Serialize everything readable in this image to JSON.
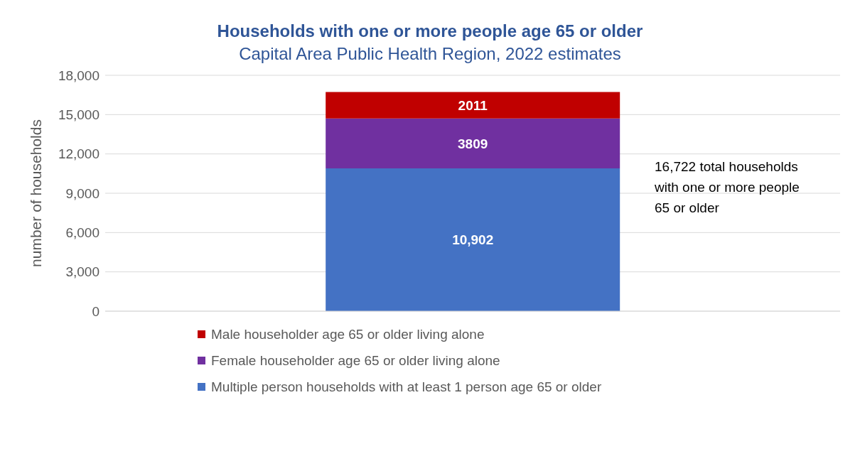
{
  "chart_data": {
    "type": "bar",
    "title": "Households with one or more people age 65 or older",
    "subtitle": "Capital Area Public Health Region, 2022 estimates",
    "ylabel": "number of households",
    "categories": [
      null
    ],
    "stacked": true,
    "series": [
      {
        "name": "Multiple person households with at least 1 person age 65 or older",
        "color": "#4472c4",
        "values": [
          10902
        ],
        "value_labels": [
          "10,902"
        ]
      },
      {
        "name": "Female householder age 65 or older living alone",
        "color": "#7030a0",
        "values": [
          3809
        ],
        "value_labels": [
          "3809"
        ]
      },
      {
        "name": "Male householder age 65 or older living alone",
        "color": "#c00000",
        "values": [
          2011
        ],
        "value_labels": [
          "2011"
        ]
      }
    ],
    "ylim": [
      0,
      18000
    ],
    "yticks": [
      {
        "value": 0,
        "label": "0"
      },
      {
        "value": 3000,
        "label": "3,000"
      },
      {
        "value": 6000,
        "label": "6,000"
      },
      {
        "value": 9000,
        "label": "9,000"
      },
      {
        "value": 12000,
        "label": "12,000"
      },
      {
        "value": 15000,
        "label": "15,000"
      },
      {
        "value": 18000,
        "label": "18,000"
      }
    ],
    "grid": "y",
    "legend": "bottom",
    "tick_labels": "y",
    "annotations": [
      "16,722 total households\nwith one or more people\n65 or older"
    ]
  }
}
